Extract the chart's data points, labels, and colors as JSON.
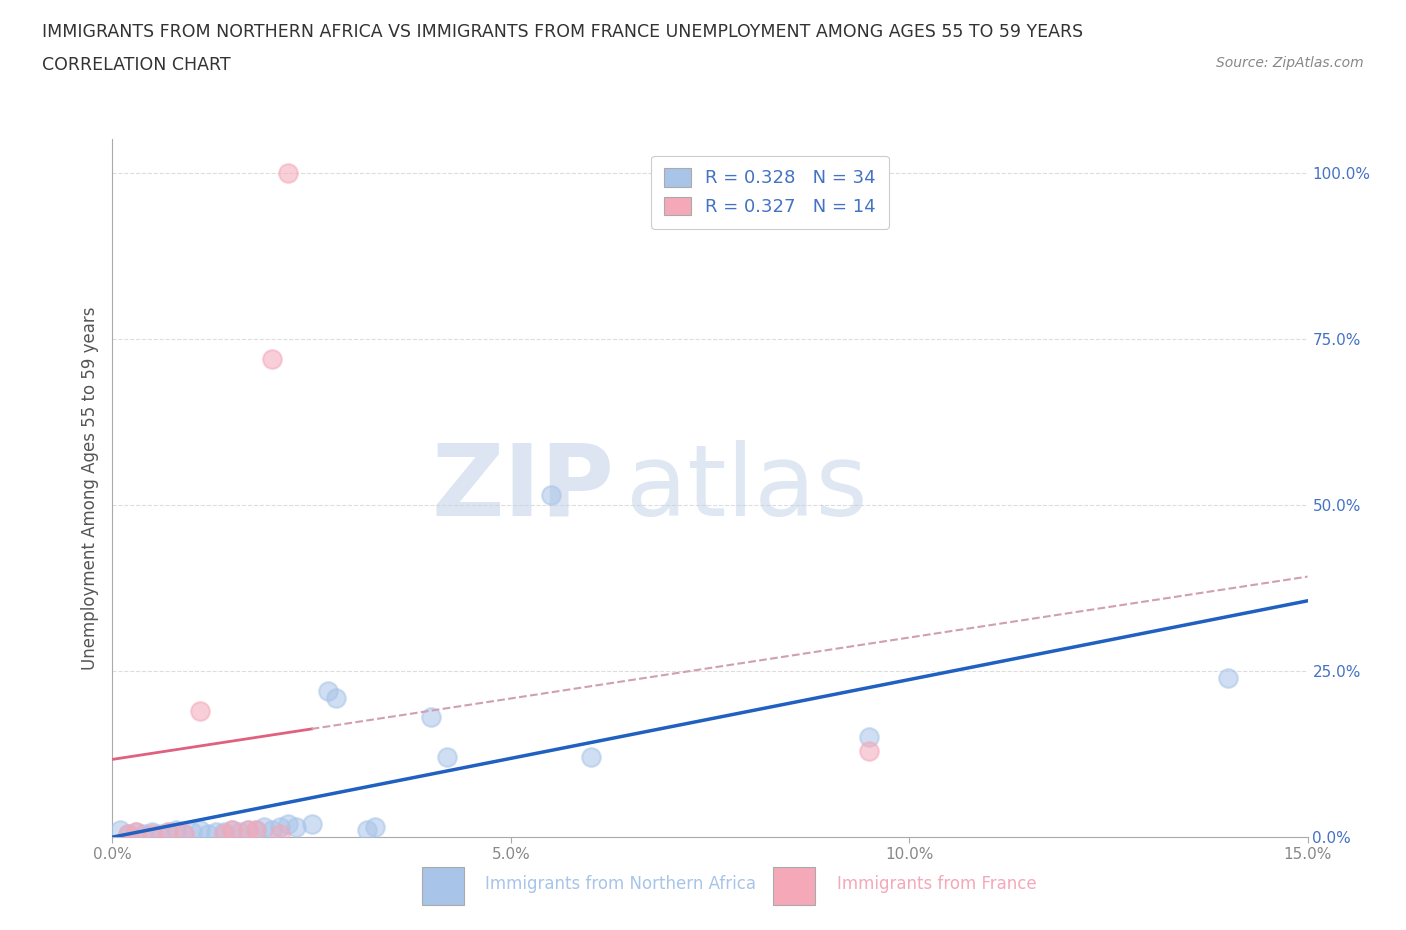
{
  "title_line1": "IMMIGRANTS FROM NORTHERN AFRICA VS IMMIGRANTS FROM FRANCE UNEMPLOYMENT AMONG AGES 55 TO 59 YEARS",
  "title_line2": "CORRELATION CHART",
  "source": "Source: ZipAtlas.com",
  "xlabel_bottom_blue": "Immigrants from Northern Africa",
  "xlabel_bottom_pink": "Immigrants from France",
  "ylabel": "Unemployment Among Ages 55 to 59 years",
  "xlim": [
    0.0,
    0.15
  ],
  "ylim": [
    0.0,
    1.05
  ],
  "yticks": [
    0.0,
    0.25,
    0.5,
    0.75,
    1.0
  ],
  "ytick_labels": [
    "0.0%",
    "25.0%",
    "50.0%",
    "75.0%",
    "100.0%"
  ],
  "xticks": [
    0.0,
    0.05,
    0.1,
    0.15
  ],
  "xtick_labels": [
    "0.0%",
    "5.0%",
    "10.0%",
    "15.0%"
  ],
  "blue_R": 0.328,
  "blue_N": 34,
  "pink_R": 0.327,
  "pink_N": 14,
  "blue_color": "#a8c4e8",
  "pink_color": "#f4a8b8",
  "blue_line_color": "#2060c0",
  "pink_line_color": "#e06080",
  "pink_dash_color": "#d0a0b0",
  "blue_scatter": [
    [
      0.001,
      0.01
    ],
    [
      0.002,
      0.005
    ],
    [
      0.003,
      0.008
    ],
    [
      0.004,
      0.005
    ],
    [
      0.005,
      0.008
    ],
    [
      0.006,
      0.005
    ],
    [
      0.007,
      0.008
    ],
    [
      0.008,
      0.01
    ],
    [
      0.009,
      0.005
    ],
    [
      0.01,
      0.008
    ],
    [
      0.011,
      0.01
    ],
    [
      0.012,
      0.005
    ],
    [
      0.013,
      0.008
    ],
    [
      0.014,
      0.008
    ],
    [
      0.015,
      0.01
    ],
    [
      0.016,
      0.008
    ],
    [
      0.017,
      0.01
    ],
    [
      0.018,
      0.01
    ],
    [
      0.019,
      0.015
    ],
    [
      0.02,
      0.01
    ],
    [
      0.021,
      0.015
    ],
    [
      0.022,
      0.02
    ],
    [
      0.023,
      0.015
    ],
    [
      0.025,
      0.02
    ],
    [
      0.027,
      0.22
    ],
    [
      0.028,
      0.21
    ],
    [
      0.032,
      0.01
    ],
    [
      0.033,
      0.015
    ],
    [
      0.04,
      0.18
    ],
    [
      0.042,
      0.12
    ],
    [
      0.055,
      0.515
    ],
    [
      0.06,
      0.12
    ],
    [
      0.095,
      0.15
    ],
    [
      0.14,
      0.24
    ]
  ],
  "pink_scatter": [
    [
      0.002,
      0.005
    ],
    [
      0.003,
      0.008
    ],
    [
      0.005,
      0.005
    ],
    [
      0.007,
      0.008
    ],
    [
      0.009,
      0.005
    ],
    [
      0.011,
      0.19
    ],
    [
      0.014,
      0.005
    ],
    [
      0.015,
      0.01
    ],
    [
      0.017,
      0.01
    ],
    [
      0.018,
      0.01
    ],
    [
      0.02,
      0.72
    ],
    [
      0.021,
      0.005
    ],
    [
      0.095,
      0.13
    ],
    [
      0.022,
      1.0
    ]
  ],
  "background_color": "#ffffff",
  "grid_color": "#dddddd",
  "watermark_zip": "ZIP",
  "watermark_atlas": "atlas",
  "legend_text_color": "#4472c4",
  "ylabel_color": "#555555",
  "tick_color": "#4472c4",
  "xtick_color": "#888888"
}
